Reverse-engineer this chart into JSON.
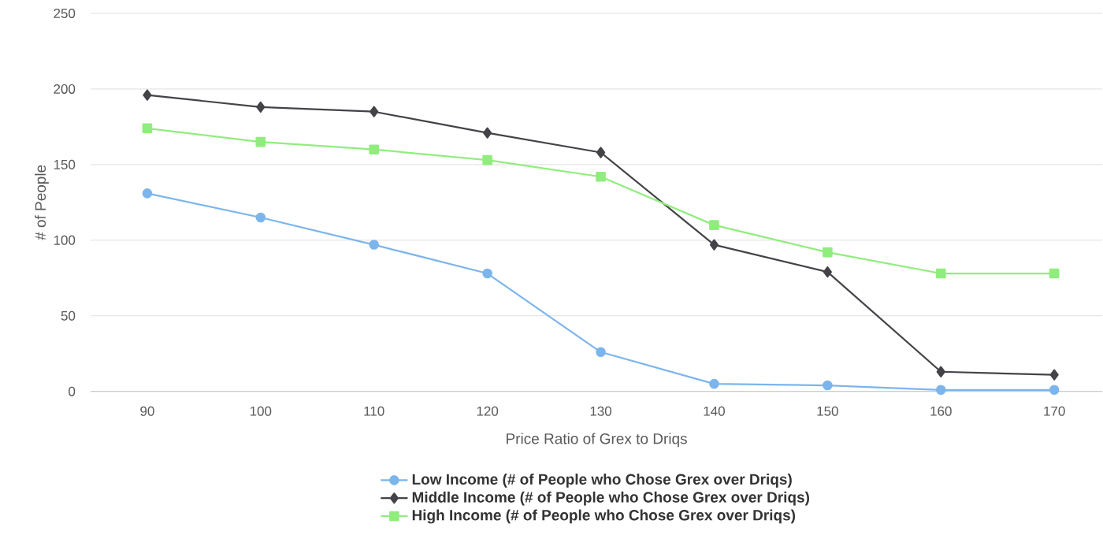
{
  "chart_data": {
    "type": "line",
    "xlabel": "Price Ratio of Grex to Driqs",
    "ylabel": "# of People",
    "categories": [
      "90",
      "100",
      "110",
      "120",
      "130",
      "140",
      "150",
      "160",
      "170"
    ],
    "series": [
      {
        "name": "Low Income (# of People who Chose Grex over Driqs)",
        "color": "#7cb5ec",
        "marker": "circle",
        "values": [
          131,
          115,
          97,
          78,
          26,
          5,
          4,
          1,
          1
        ]
      },
      {
        "name": "Middle Income (# of People who Chose Grex over Driqs)",
        "color": "#434348",
        "marker": "diamond",
        "values": [
          196,
          188,
          185,
          171,
          158,
          97,
          79,
          13,
          11
        ]
      },
      {
        "name": "High Income (# of People who Chose Grex over Driqs)",
        "color": "#90ed7d",
        "marker": "square",
        "values": [
          174,
          165,
          160,
          153,
          142,
          110,
          92,
          78,
          78
        ]
      }
    ],
    "ylim": [
      0,
      250
    ],
    "yticks": [
      0,
      50,
      100,
      150,
      200,
      250
    ],
    "grid": "y",
    "legend": "bottom",
    "line_style": "solid"
  }
}
